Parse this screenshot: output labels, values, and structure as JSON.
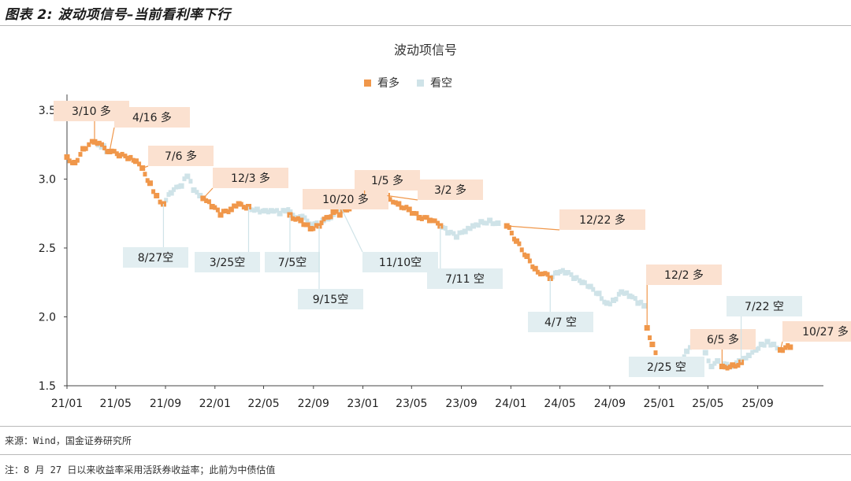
{
  "header": {
    "title": "图表 2: 波动项信号–当前看利率下行"
  },
  "footnotes": {
    "source": "来源：Wind，国金证券研究所",
    "note": "注：8 月 27 日以来收益率采用活跃券收益率；此前为中债估值"
  },
  "colors": {
    "long": "#f0974a",
    "short": "#cfe3e8",
    "long_label_bg": "#fbe1d0",
    "short_label_bg": "#e2eef1",
    "axis": "#444444"
  },
  "chart_data": {
    "type": "scatter",
    "title": "波动项信号",
    "xlabel": "",
    "ylabel": "",
    "ylim": [
      1.5,
      3.5
    ],
    "yticks": [
      "1.5",
      "2.0",
      "2.5",
      "3.0",
      "3.5"
    ],
    "xticks": [
      "21/01",
      "21/05",
      "21/09",
      "22/01",
      "22/05",
      "22/09",
      "23/01",
      "23/05",
      "23/09",
      "24/01",
      "24/05",
      "24/09",
      "25/01",
      "25/05",
      "25/09"
    ],
    "legend": [
      "看多",
      "看空"
    ],
    "legend_position": "top-center",
    "series": [
      {
        "name": "看多",
        "points": [
          [
            "21/01/01",
            3.16
          ],
          [
            "21/01/20",
            3.12
          ],
          [
            "21/02/10",
            3.22
          ],
          [
            "21/03/10",
            3.27
          ],
          [
            "21/04/16",
            3.2
          ],
          [
            "21/05/10",
            3.17
          ],
          [
            "21/06/01",
            3.15
          ],
          [
            "21/06/20",
            3.13
          ],
          [
            "21/07/06",
            3.08
          ],
          [
            "21/07/25",
            2.97
          ],
          [
            "21/08/10",
            2.88
          ],
          [
            "21/08/27",
            2.82
          ],
          [
            "21/12/03",
            2.86
          ],
          [
            "21/12/25",
            2.8
          ],
          [
            "22/01/15",
            2.74
          ],
          [
            "22/02/10",
            2.78
          ],
          [
            "22/03/01",
            2.82
          ],
          [
            "22/03/25",
            2.8
          ],
          [
            "22/07/05",
            2.74
          ],
          [
            "22/08/01",
            2.7
          ],
          [
            "22/08/25",
            2.64
          ],
          [
            "22/09/15",
            2.66
          ],
          [
            "22/10/20",
            2.76
          ],
          [
            "22/11/05",
            2.74
          ],
          [
            "23/01/05",
            2.89
          ],
          [
            "23/02/01",
            2.9
          ],
          [
            "23/03/02",
            2.88
          ],
          [
            "23/03/30",
            2.82
          ],
          [
            "23/04/25",
            2.78
          ],
          [
            "23/05/20",
            2.72
          ],
          [
            "23/06/15",
            2.7
          ],
          [
            "23/07/11",
            2.66
          ],
          [
            "23/12/22",
            2.66
          ],
          [
            "24/01/15",
            2.55
          ],
          [
            "24/02/10",
            2.44
          ],
          [
            "24/03/01",
            2.35
          ],
          [
            "24/04/07",
            2.28
          ],
          [
            "24/12/02",
            1.92
          ],
          [
            "24/12/15",
            1.8
          ],
          [
            "24/12/31",
            1.68
          ],
          [
            "25/01/20",
            1.63
          ],
          [
            "25/02/10",
            1.62
          ],
          [
            "25/02/25",
            1.66
          ],
          [
            "25/06/05",
            1.64
          ],
          [
            "25/07/01",
            1.65
          ],
          [
            "25/07/22",
            1.67
          ],
          [
            "25/10/27",
            1.76
          ],
          [
            "25/11/20",
            1.78
          ]
        ]
      },
      {
        "name": "看空",
        "points": [
          [
            "21/03/20",
            3.25
          ],
          [
            "21/04/01",
            3.24
          ],
          [
            "21/04/10",
            3.2
          ],
          [
            "21/08/27",
            2.82
          ],
          [
            "21/09/15",
            2.9
          ],
          [
            "21/10/10",
            2.95
          ],
          [
            "21/10/25",
            3.02
          ],
          [
            "21/11/10",
            2.92
          ],
          [
            "21/11/25",
            2.88
          ],
          [
            "22/03/25",
            2.8
          ],
          [
            "22/04/15",
            2.78
          ],
          [
            "22/05/05",
            2.77
          ],
          [
            "22/05/20",
            2.77
          ],
          [
            "22/06/10",
            2.75
          ],
          [
            "22/06/25",
            2.77
          ],
          [
            "22/09/15",
            2.66
          ],
          [
            "22/09/25",
            2.7
          ],
          [
            "22/11/10",
            2.78
          ],
          [
            "22/11/25",
            2.82
          ],
          [
            "22/12/10",
            2.86
          ],
          [
            "22/12/25",
            2.87
          ],
          [
            "23/07/11",
            2.66
          ],
          [
            "23/07/30",
            2.61
          ],
          [
            "23/08/20",
            2.58
          ],
          [
            "23/09/10",
            2.62
          ],
          [
            "23/09/30",
            2.66
          ],
          [
            "23/10/20",
            2.69
          ],
          [
            "23/11/10",
            2.7
          ],
          [
            "23/11/30",
            2.68
          ],
          [
            "24/04/07",
            2.28
          ],
          [
            "24/04/25",
            2.32
          ],
          [
            "24/05/15",
            2.32
          ],
          [
            "24/06/05",
            2.28
          ],
          [
            "24/06/25",
            2.25
          ],
          [
            "24/07/15",
            2.22
          ],
          [
            "24/08/05",
            2.17
          ],
          [
            "24/08/25",
            2.1
          ],
          [
            "24/09/10",
            2.12
          ],
          [
            "24/09/30",
            2.18
          ],
          [
            "24/10/20",
            2.15
          ],
          [
            "24/11/10",
            2.1
          ],
          [
            "24/11/25",
            2.08
          ],
          [
            "25/02/25",
            1.66
          ],
          [
            "25/03/10",
            1.75
          ],
          [
            "25/03/25",
            1.82
          ],
          [
            "25/04/10",
            1.86
          ],
          [
            "25/04/25",
            1.74
          ],
          [
            "25/05/10",
            1.64
          ],
          [
            "25/05/25",
            1.68
          ],
          [
            "25/06/05",
            1.64
          ],
          [
            "25/07/22",
            1.67
          ],
          [
            "25/08/10",
            1.72
          ],
          [
            "25/08/27",
            1.76
          ],
          [
            "25/09/10",
            1.8
          ],
          [
            "25/09/25",
            1.82
          ],
          [
            "25/10/10",
            1.8
          ],
          [
            "25/10/27",
            1.76
          ]
        ]
      }
    ],
    "annotations": [
      {
        "text": "3/10 多",
        "kind": "long",
        "date": "21/03/10",
        "y": 3.27
      },
      {
        "text": "4/16 多",
        "kind": "long",
        "date": "21/04/16",
        "y": 3.2
      },
      {
        "text": "7/6 多",
        "kind": "long",
        "date": "21/07/06",
        "y": 3.08
      },
      {
        "text": "12/3 多",
        "kind": "long",
        "date": "21/12/03",
        "y": 2.86
      },
      {
        "text": "10/20 多",
        "kind": "long",
        "date": "22/10/20",
        "y": 2.76
      },
      {
        "text": "1/5 多",
        "kind": "long",
        "date": "23/01/05",
        "y": 2.89
      },
      {
        "text": "3/2 多",
        "kind": "long",
        "date": "23/03/02",
        "y": 2.88
      },
      {
        "text": "12/22 多",
        "kind": "long",
        "date": "23/12/22",
        "y": 2.66
      },
      {
        "text": "12/2 多",
        "kind": "long",
        "date": "24/12/02",
        "y": 1.92
      },
      {
        "text": "6/5 多",
        "kind": "long",
        "date": "25/06/05",
        "y": 1.64
      },
      {
        "text": "10/27 多",
        "kind": "long",
        "date": "25/10/27",
        "y": 1.76
      },
      {
        "text": "8/27空",
        "kind": "short",
        "date": "21/08/27",
        "y": 2.82
      },
      {
        "text": "3/25空",
        "kind": "short",
        "date": "22/03/25",
        "y": 2.8
      },
      {
        "text": "7/5空",
        "kind": "short",
        "date": "22/07/05",
        "y": 2.74
      },
      {
        "text": "9/15空",
        "kind": "short",
        "date": "22/09/15",
        "y": 2.66
      },
      {
        "text": "11/10空",
        "kind": "short",
        "date": "22/11/10",
        "y": 2.78
      },
      {
        "text": "7/11 空",
        "kind": "short",
        "date": "23/07/11",
        "y": 2.66
      },
      {
        "text": "4/7 空",
        "kind": "short",
        "date": "24/04/07",
        "y": 2.28
      },
      {
        "text": "2/25 空",
        "kind": "short",
        "date": "25/02/25",
        "y": 1.66
      },
      {
        "text": "7/22 空",
        "kind": "short",
        "date": "25/07/22",
        "y": 1.67
      }
    ]
  }
}
